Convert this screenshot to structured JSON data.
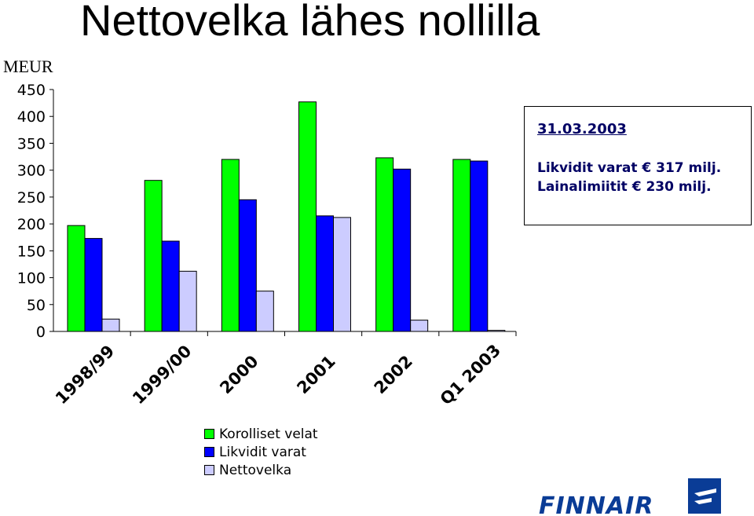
{
  "title": "Nettovelka lähes nollilla",
  "unit_label": "MEUR",
  "info": {
    "date": "31.03.2003",
    "line1": "Likvidit varat € 317 milj.",
    "line2": "Lainalimiitit € 230  milj."
  },
  "logo_text": "FINNAIR",
  "colors": {
    "series1": "#00ff00",
    "series2": "#0000ff",
    "series3": "#ccccff",
    "text": "#000064",
    "logo": "#0a3c96"
  },
  "chart_data": {
    "type": "bar",
    "categories": [
      "1998/99",
      "1999/00",
      "2000",
      "2001",
      "2002",
      "Q1 2003"
    ],
    "series": [
      {
        "name": "Korolliset velat",
        "values": [
          197,
          281,
          320,
          427,
          323,
          320
        ]
      },
      {
        "name": "Likvidit varat",
        "values": [
          173,
          168,
          245,
          215,
          302,
          317
        ]
      },
      {
        "name": "Nettovelka",
        "values": [
          23,
          112,
          75,
          212,
          21,
          2
        ]
      }
    ],
    "ylim": [
      0,
      450
    ],
    "yticks": [
      0,
      50,
      100,
      150,
      200,
      250,
      300,
      350,
      400,
      450
    ],
    "ylabel": "MEUR",
    "legend": "bottom"
  }
}
